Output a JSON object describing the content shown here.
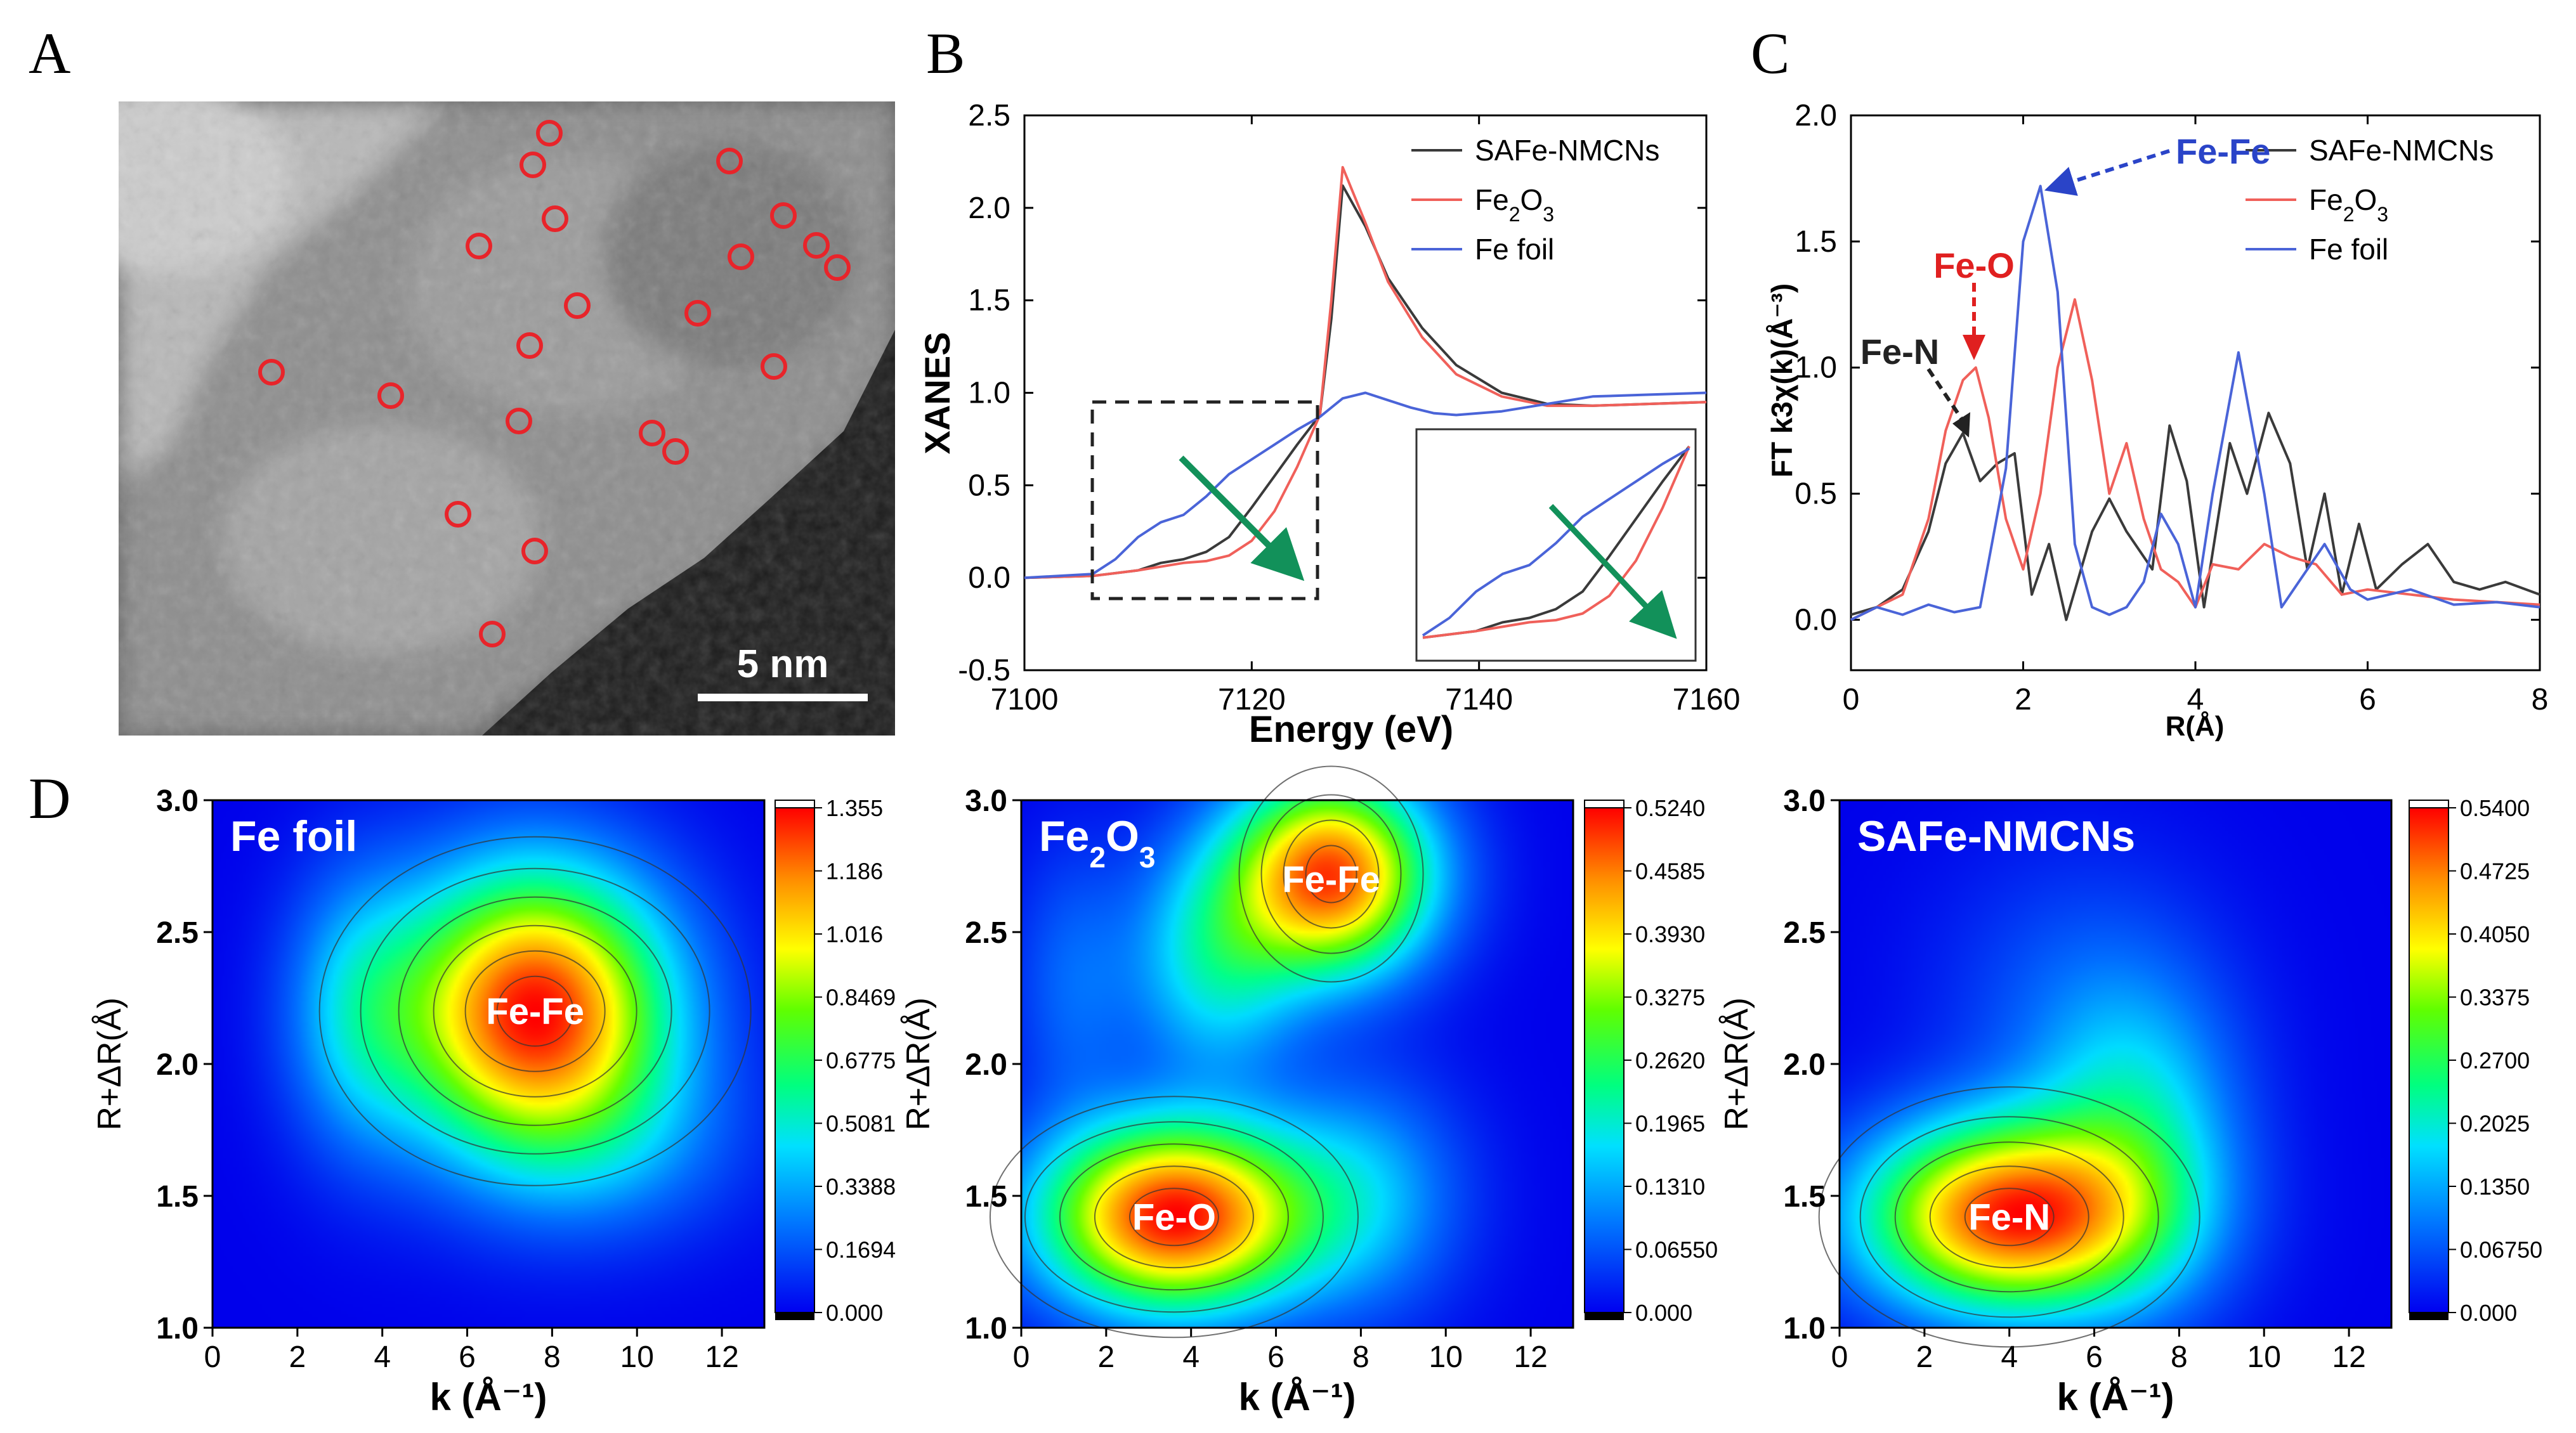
{
  "figure": {
    "panel_labels": [
      "A",
      "B",
      "C",
      "D"
    ]
  },
  "colors": {
    "black_series": "#3a3a3a",
    "red_series": "#f0605a",
    "blue_series": "#4a64d8",
    "marker_red": "#e8242a",
    "arrow_green": "#12915a",
    "fe_fe_label": "#2a44c8",
    "fe_o_label": "#e02020"
  },
  "panel_a": {
    "type": "micrograph",
    "scale_bar_label": "5 nm",
    "marker_count": 21
  },
  "chart_data": [
    {
      "type": "line",
      "panel": "B",
      "title": "",
      "xlabel": "Energy (eV)",
      "ylabel": "XANES",
      "xlim": [
        7100,
        7160
      ],
      "ylim": [
        -0.5,
        2.5
      ],
      "xticks": [
        "7100",
        "7120",
        "7140",
        "7160"
      ],
      "yticks": [
        "-0.5",
        "0.0",
        "0.5",
        "1.0",
        "1.5",
        "2.0",
        "2.5"
      ],
      "legend": [
        "SAFe-NMCNs",
        "Fe2O3",
        "Fe foil"
      ],
      "legend_position": "top-right",
      "inset": "zoom of pre-edge region 7106–7126 eV",
      "series": [
        {
          "name": "SAFe-NMCNs",
          "color": "#3a3a3a",
          "x": [
            7100,
            7106,
            7110,
            7112,
            7114,
            7116,
            7118,
            7120,
            7122,
            7124,
            7126,
            7127,
            7128,
            7130,
            7132,
            7135,
            7138,
            7142,
            7146,
            7150,
            7155,
            7160
          ],
          "y": [
            0.0,
            0.01,
            0.04,
            0.08,
            0.1,
            0.14,
            0.22,
            0.38,
            0.55,
            0.72,
            0.88,
            1.4,
            2.12,
            1.9,
            1.62,
            1.35,
            1.15,
            1.0,
            0.94,
            0.93,
            0.94,
            0.95
          ]
        },
        {
          "name": "Fe2O3",
          "color": "#f0605a",
          "x": [
            7100,
            7106,
            7110,
            7112,
            7114,
            7116,
            7118,
            7120,
            7122,
            7124,
            7126,
            7127,
            7128,
            7130,
            7132,
            7135,
            7138,
            7142,
            7146,
            7150,
            7155,
            7160
          ],
          "y": [
            0.0,
            0.01,
            0.04,
            0.06,
            0.08,
            0.09,
            0.12,
            0.2,
            0.36,
            0.6,
            0.88,
            1.5,
            2.22,
            1.92,
            1.6,
            1.3,
            1.1,
            0.98,
            0.93,
            0.93,
            0.94,
            0.95
          ]
        },
        {
          "name": "Fe foil",
          "color": "#4a64d8",
          "x": [
            7100,
            7106,
            7108,
            7110,
            7112,
            7114,
            7116,
            7118,
            7120,
            7122,
            7124,
            7126,
            7128,
            7130,
            7132,
            7134,
            7136,
            7138,
            7142,
            7146,
            7150,
            7155,
            7160
          ],
          "y": [
            0.0,
            0.02,
            0.1,
            0.22,
            0.3,
            0.34,
            0.44,
            0.56,
            0.64,
            0.72,
            0.8,
            0.87,
            0.97,
            1.0,
            0.96,
            0.92,
            0.89,
            0.88,
            0.9,
            0.94,
            0.98,
            0.99,
            1.0
          ]
        }
      ]
    },
    {
      "type": "line",
      "panel": "C",
      "title": "",
      "xlabel": "R(Å)",
      "ylabel": "FT k3χ(k)(Å⁻³)",
      "xlim": [
        0,
        8
      ],
      "ylim": [
        -0.2,
        2.0
      ],
      "xticks": [
        "0",
        "2",
        "4",
        "6",
        "8"
      ],
      "yticks": [
        "0.0",
        "0.5",
        "1.0",
        "1.5",
        "2.0"
      ],
      "legend": [
        "SAFe-NMCNs",
        "Fe2O3",
        "Fe foil"
      ],
      "legend_position": "top-right",
      "annotations": [
        "Fe-Fe",
        "Fe-O",
        "Fe-N"
      ],
      "series": [
        {
          "name": "SAFe-NMCNs",
          "color": "#3a3a3a",
          "x": [
            0,
            0.3,
            0.6,
            0.9,
            1.1,
            1.3,
            1.5,
            1.7,
            1.9,
            2.1,
            2.3,
            2.5,
            2.8,
            3.0,
            3.2,
            3.5,
            3.7,
            3.9,
            4.1,
            4.4,
            4.6,
            4.85,
            5.1,
            5.3,
            5.5,
            5.7,
            5.9,
            6.1,
            6.4,
            6.7,
            7.0,
            7.3,
            7.6,
            8.0
          ],
          "y": [
            0.02,
            0.05,
            0.12,
            0.35,
            0.62,
            0.74,
            0.55,
            0.62,
            0.66,
            0.1,
            0.3,
            0.0,
            0.35,
            0.48,
            0.35,
            0.2,
            0.77,
            0.55,
            0.05,
            0.7,
            0.5,
            0.82,
            0.62,
            0.2,
            0.5,
            0.1,
            0.38,
            0.12,
            0.22,
            0.3,
            0.15,
            0.12,
            0.15,
            0.1
          ]
        },
        {
          "name": "Fe2O3",
          "color": "#f0605a",
          "x": [
            0,
            0.3,
            0.6,
            0.9,
            1.1,
            1.3,
            1.45,
            1.6,
            1.8,
            2.0,
            2.2,
            2.4,
            2.6,
            2.8,
            3.0,
            3.2,
            3.4,
            3.6,
            3.8,
            4.0,
            4.2,
            4.5,
            4.8,
            5.1,
            5.4,
            5.7,
            6.0,
            6.5,
            7.0,
            7.5,
            8.0
          ],
          "y": [
            0.0,
            0.05,
            0.1,
            0.4,
            0.75,
            0.95,
            1.0,
            0.8,
            0.4,
            0.2,
            0.5,
            1.0,
            1.27,
            0.95,
            0.5,
            0.7,
            0.4,
            0.2,
            0.15,
            0.05,
            0.22,
            0.2,
            0.3,
            0.25,
            0.22,
            0.1,
            0.12,
            0.1,
            0.08,
            0.07,
            0.06
          ]
        },
        {
          "name": "Fe foil",
          "color": "#4a64d8",
          "x": [
            0,
            0.3,
            0.6,
            0.9,
            1.2,
            1.5,
            1.8,
            2.0,
            2.2,
            2.4,
            2.6,
            2.8,
            3.0,
            3.2,
            3.4,
            3.6,
            3.8,
            4.0,
            4.2,
            4.5,
            4.8,
            5.0,
            5.2,
            5.5,
            5.8,
            6.0,
            6.5,
            7.0,
            7.5,
            8.0
          ],
          "y": [
            0.0,
            0.05,
            0.02,
            0.06,
            0.03,
            0.05,
            0.6,
            1.5,
            1.72,
            1.3,
            0.3,
            0.05,
            0.02,
            0.05,
            0.15,
            0.42,
            0.3,
            0.05,
            0.5,
            1.06,
            0.5,
            0.05,
            0.15,
            0.3,
            0.12,
            0.08,
            0.12,
            0.06,
            0.07,
            0.05
          ]
        }
      ]
    },
    {
      "type": "heatmap",
      "panel": "D-1",
      "title": "Fe foil",
      "xlabel": "k (Å⁻¹)",
      "ylabel": "R+ΔR(Å)",
      "xlim": [
        0,
        13
      ],
      "ylim": [
        1.0,
        3.0
      ],
      "xticks": [
        "0",
        "2",
        "4",
        "6",
        "8",
        "10",
        "12"
      ],
      "yticks": [
        "1.0",
        "1.5",
        "2.0",
        "2.5",
        "3.0"
      ],
      "colorbar_ticks": [
        "1.355",
        "1.186",
        "1.016",
        "0.8469",
        "0.6775",
        "0.5081",
        "0.3388",
        "0.1694",
        "0.000"
      ],
      "zmax": 1.355,
      "peaks": [
        {
          "label": "Fe-Fe",
          "k": 7.6,
          "r": 2.2,
          "value": 1.355
        }
      ]
    },
    {
      "type": "heatmap",
      "panel": "D-2",
      "title": "Fe2O3",
      "xlabel": "k (Å⁻¹)",
      "ylabel": "R+ΔR(Å)",
      "xlim": [
        0,
        13
      ],
      "ylim": [
        1.0,
        3.0
      ],
      "xticks": [
        "0",
        "2",
        "4",
        "6",
        "8",
        "10",
        "12"
      ],
      "yticks": [
        "1.0",
        "1.5",
        "2.0",
        "2.5",
        "3.0"
      ],
      "colorbar_ticks": [
        "0.5240",
        "0.4585",
        "0.3930",
        "0.3275",
        "0.2620",
        "0.1965",
        "0.1310",
        "0.06550",
        "0.000"
      ],
      "zmax": 0.524,
      "peaks": [
        {
          "label": "Fe-O",
          "k": 3.6,
          "r": 1.42,
          "value": 0.524
        },
        {
          "label": "Fe-Fe",
          "k": 7.3,
          "r": 2.7,
          "value": 0.5
        }
      ]
    },
    {
      "type": "heatmap",
      "panel": "D-3",
      "title": "SAFe-NMCNs",
      "xlabel": "k (Å⁻¹)",
      "ylabel": "R+ΔR(Å)",
      "xlim": [
        0,
        13
      ],
      "ylim": [
        1.0,
        3.0
      ],
      "xticks": [
        "0",
        "2",
        "4",
        "6",
        "8",
        "10",
        "12"
      ],
      "yticks": [
        "1.0",
        "1.5",
        "2.0",
        "2.5",
        "3.0"
      ],
      "colorbar_ticks": [
        "0.5400",
        "0.4725",
        "0.4050",
        "0.3375",
        "0.2700",
        "0.2025",
        "0.1350",
        "0.06750",
        "0.000"
      ],
      "zmax": 0.54,
      "peaks": [
        {
          "label": "Fe-N",
          "k": 4.0,
          "r": 1.42,
          "value": 0.54
        }
      ]
    }
  ]
}
